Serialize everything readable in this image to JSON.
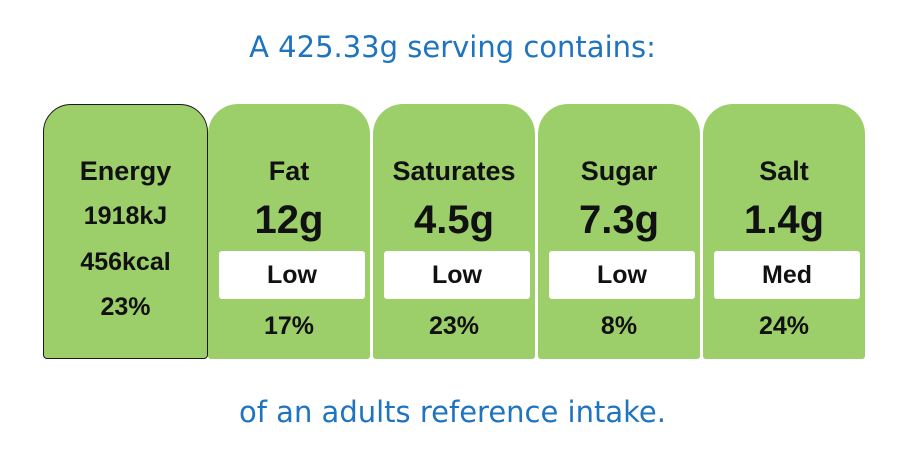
{
  "header": "A 425.33g serving contains:",
  "footer": "of an adults reference intake.",
  "energy": {
    "label": "Energy",
    "kj": "1918kJ",
    "kcal": "456kcal",
    "percent": "23%"
  },
  "nutrients": [
    {
      "label": "Fat",
      "amount": "12g",
      "level": "Low",
      "percent": "17%"
    },
    {
      "label": "Saturates",
      "amount": "4.5g",
      "level": "Low",
      "percent": "23%"
    },
    {
      "label": "Sugar",
      "amount": "7.3g",
      "level": "Low",
      "percent": "8%"
    },
    {
      "label": "Salt",
      "amount": "1.4g",
      "level": "Med",
      "percent": "24%"
    }
  ],
  "colors": {
    "panel_green": "#9ccf6a",
    "heading_blue": "#1f74c0",
    "text": "#111111"
  }
}
